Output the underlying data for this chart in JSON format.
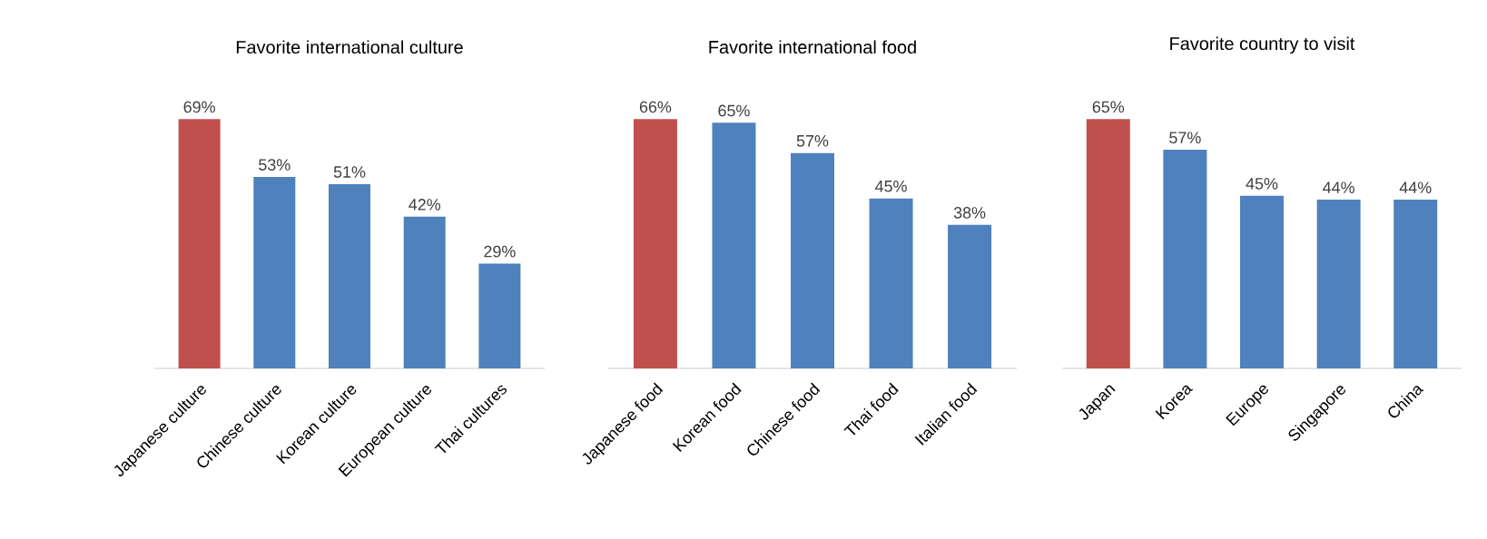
{
  "chart_data": [
    {
      "type": "bar",
      "title": "Favorite international culture",
      "categories": [
        "Japanese culture",
        "Chinese culture",
        "Korean culture",
        "European culture",
        "Thai cultures"
      ],
      "values": [
        69,
        53,
        51,
        42,
        29
      ],
      "value_labels": [
        "69%",
        "53%",
        "51%",
        "42%",
        "29%"
      ],
      "colors": [
        "#c0504d",
        "#4f81bd",
        "#4f81bd",
        "#4f81bd",
        "#4f81bd"
      ]
    },
    {
      "type": "bar",
      "title": "Favorite international food",
      "categories": [
        "Japanese food",
        "Korean food",
        "Chinese food",
        "Thai food",
        "Italian food"
      ],
      "values": [
        66,
        65,
        57,
        45,
        38
      ],
      "value_labels": [
        "66%",
        "65%",
        "57%",
        "45%",
        "38%"
      ],
      "colors": [
        "#c0504d",
        "#4f81bd",
        "#4f81bd",
        "#4f81bd",
        "#4f81bd"
      ]
    },
    {
      "type": "bar",
      "title": "Favorite country to visit",
      "categories": [
        "Japan",
        "Korea",
        "Europe",
        "Singapore",
        "China"
      ],
      "values": [
        65,
        57,
        45,
        44,
        44
      ],
      "value_labels": [
        "65%",
        "57%",
        "45%",
        "44%",
        "44%"
      ],
      "colors": [
        "#c0504d",
        "#4f81bd",
        "#4f81bd",
        "#4f81bd",
        "#4f81bd"
      ]
    }
  ]
}
